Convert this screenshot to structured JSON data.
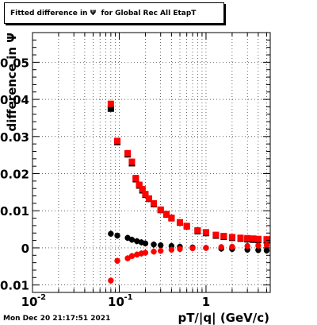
{
  "title": "Fitted difference in Ψ  for Global Rec All EtapT",
  "timestamp": "Mon Dec 20 21:17:51 2021",
  "chart_data": {
    "type": "scatter",
    "title": "Fitted difference in Ψ  for Global Rec All EtapT",
    "xlabel": "pT/|q| (GeV/c)",
    "ylabel": "difference in  Ψ",
    "x_scale": "log",
    "xlim": [
      0.01,
      5.5
    ],
    "ylim": [
      -0.012,
      0.058
    ],
    "x_ticks": [
      {
        "value": 0.01,
        "label": "10"
      },
      {
        "value": 0.1,
        "label": "10"
      },
      {
        "value": 1,
        "label": "1"
      }
    ],
    "x_tick_exponents": [
      "-2",
      "-1",
      ""
    ],
    "y_ticks": [
      {
        "value": -0.01,
        "label": "-0.01"
      },
      {
        "value": 0,
        "label": "0"
      },
      {
        "value": 0.01,
        "label": "0.01"
      },
      {
        "value": 0.02,
        "label": "0.02"
      },
      {
        "value": 0.03,
        "label": "0.03"
      },
      {
        "value": 0.04,
        "label": "0.04"
      },
      {
        "value": 0.05,
        "label": "0.05"
      }
    ],
    "grid": true,
    "series": [
      {
        "color": "#000000",
        "marker": "square",
        "x": [
          0.08,
          0.095,
          0.125,
          0.14,
          0.155,
          0.17,
          0.185,
          0.2,
          0.22,
          0.25,
          0.3,
          0.35,
          0.4,
          0.5,
          0.6,
          0.8,
          1.0,
          1.3,
          1.6,
          2.0,
          2.5,
          3.0,
          3.5,
          4.0,
          5.0
        ],
        "y": [
          0.0375,
          0.0285,
          0.0252,
          0.0228,
          0.0185,
          0.0168,
          0.0155,
          0.0143,
          0.0132,
          0.0118,
          0.0102,
          0.009,
          0.008,
          0.0068,
          0.0058,
          0.0045,
          0.004,
          0.0033,
          0.003,
          0.0027,
          0.0025,
          0.0023,
          0.0022,
          0.0021,
          0.002
        ]
      },
      {
        "color": "#ff0000",
        "marker": "square",
        "x": [
          0.08,
          0.095,
          0.125,
          0.14,
          0.155,
          0.17,
          0.185,
          0.2,
          0.22,
          0.25,
          0.3,
          0.35,
          0.4,
          0.5,
          0.6,
          0.8,
          1.0,
          1.3,
          1.6,
          2.0,
          2.5,
          3.0,
          3.5,
          4.0,
          5.0
        ],
        "y": [
          0.0388,
          0.0288,
          0.0255,
          0.0232,
          0.0188,
          0.017,
          0.0158,
          0.0145,
          0.0133,
          0.012,
          0.0103,
          0.0091,
          0.0081,
          0.0069,
          0.0059,
          0.0047,
          0.0042,
          0.0035,
          0.0032,
          0.0029,
          0.0027,
          0.0026,
          0.0025,
          0.0024,
          0.0023
        ]
      },
      {
        "color": "#000000",
        "marker": "circle",
        "x": [
          0.08,
          0.095,
          0.125,
          0.14,
          0.16,
          0.18,
          0.2,
          0.25,
          0.3,
          0.4,
          0.5,
          0.7,
          1.0,
          1.5,
          2.0,
          3.0,
          4.0,
          5.0
        ],
        "y": [
          0.0038,
          0.0033,
          0.0027,
          0.0022,
          0.0018,
          0.0015,
          0.0012,
          0.0009,
          0.0007,
          0.0005,
          0.0003,
          0.0001,
          0.0,
          -0.0002,
          -0.0003,
          -0.0005,
          -0.0006,
          -0.0007
        ]
      },
      {
        "color": "#ff0000",
        "marker": "circle",
        "x": [
          0.08,
          0.095,
          0.125,
          0.14,
          0.16,
          0.18,
          0.2,
          0.25,
          0.3,
          0.4,
          0.5,
          0.7,
          1.0,
          1.5,
          2.0,
          3.0,
          4.0,
          5.0
        ],
        "y": [
          -0.0088,
          -0.0035,
          -0.0028,
          -0.0022,
          -0.0018,
          -0.0015,
          -0.0013,
          -0.001,
          -0.0008,
          -0.0005,
          -0.0003,
          -0.0001,
          0.0,
          0.0002,
          0.0003,
          0.0005,
          0.0006,
          0.0007
        ]
      }
    ]
  }
}
